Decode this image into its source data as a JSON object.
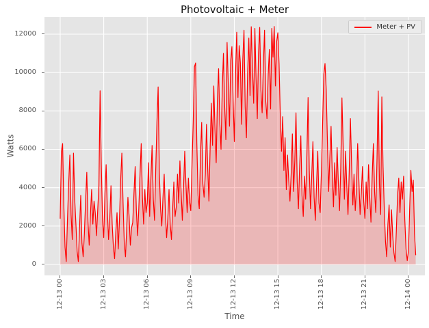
{
  "chart_data": {
    "type": "line",
    "title": "Photovoltaic + Meter",
    "xlabel": "Time",
    "ylabel": "Watts",
    "grid": true,
    "background_color": "#e5e5e5",
    "grid_color": "#ffffff",
    "x_tick_labels": [
      "12-13 00",
      "12-13 03",
      "12-13 06",
      "12-13 09",
      "12-13 12",
      "12-13 15",
      "12-13 18",
      "12-13 21",
      "12-14 00"
    ],
    "x_tick_minutes": [
      0,
      180,
      360,
      540,
      720,
      900,
      1080,
      1260,
      1440
    ],
    "y_ticks": [
      0,
      2000,
      4000,
      6000,
      8000,
      10000,
      12000
    ],
    "y_tick_labels": [
      "0",
      "2000",
      "4000",
      "6000",
      "8000",
      "10000",
      "12000"
    ],
    "x_domain_minutes": [
      -65,
      1508
    ],
    "y_domain_watts": [
      -570,
      12890
    ],
    "legend": {
      "position": "upper right",
      "entries": [
        {
          "label": "Meter + PV",
          "color": "#ff0000"
        }
      ]
    },
    "series": [
      {
        "name": "Meter + PV",
        "color": "#ff0000",
        "fill_to_zero": true,
        "fill_alpha": 0.2,
        "start_minute": 0,
        "sample_interval_minutes": 5,
        "values": [
          2400,
          5900,
          6300,
          3100,
          900,
          150,
          2300,
          4200,
          5700,
          2600,
          1300,
          5800,
          3400,
          2100,
          700,
          150,
          1900,
          3600,
          1100,
          400,
          1600,
          3300,
          4800,
          2200,
          1000,
          2600,
          3900,
          2100,
          3300,
          2700,
          1500,
          2800,
          4100,
          9050,
          5200,
          2300,
          1400,
          3700,
          5200,
          2800,
          1300,
          2400,
          4100,
          2100,
          900,
          300,
          1700,
          2700,
          800,
          2300,
          4400,
          5800,
          3200,
          1100,
          400,
          1900,
          3500,
          2500,
          1000,
          1900,
          2200,
          3700,
          5100,
          2800,
          1500,
          2900,
          4700,
          6300,
          3500,
          2100,
          3900,
          2700,
          3200,
          5300,
          2500,
          4500,
          6200,
          3400,
          2300,
          4900,
          7400,
          9250,
          4800,
          2900,
          2000,
          3500,
          4700,
          2700,
          1400,
          2400,
          3900,
          2100,
          1300,
          2900,
          4300,
          2500,
          3000,
          4700,
          3200,
          5400,
          3800,
          2300,
          4000,
          5900,
          4200,
          2700,
          4500,
          3300,
          2800,
          5200,
          7400,
          10300,
          10500,
          6300,
          3600,
          2900,
          5700,
          7400,
          4200,
          3500,
          4700,
          7300,
          5000,
          3300,
          6100,
          8400,
          6200,
          9300,
          7100,
          5300,
          8600,
          10200,
          7400,
          6000,
          9100,
          11000,
          8300,
          6500,
          11570,
          9400,
          7200,
          10600,
          11350,
          8600,
          6400,
          9900,
          12100,
          8700,
          11400,
          10500,
          7300,
          10700,
          12200,
          8200,
          6600,
          10000,
          11800,
          8800,
          12390,
          10200,
          8400,
          12300,
          9700,
          7600,
          11000,
          12350,
          9100,
          7900,
          10400,
          12200,
          8500,
          7600,
          9900,
          11200,
          8100,
          12300,
          10800,
          12400,
          9300,
          11600,
          12070,
          10460,
          7800,
          5900,
          7700,
          4900,
          6600,
          3900,
          5700,
          4400,
          3300,
          4700,
          6800,
          3800,
          5400,
          7900,
          4300,
          2900,
          5100,
          6700,
          3600,
          2500,
          4600,
          3400,
          5700,
          8700,
          4900,
          2900,
          4600,
          6400,
          3500,
          2300,
          4200,
          5900,
          3200,
          2700,
          4800,
          7300,
          9900,
          10470,
          9100,
          6400,
          3800,
          5600,
          7200,
          4700,
          3000,
          5300,
          3600,
          6100,
          4300,
          2800,
          5000,
          8680,
          6200,
          3400,
          5900,
          4100,
          2600,
          4800,
          7600,
          5200,
          3100,
          4700,
          2800,
          3900,
          6300,
          4400,
          2600,
          3700,
          5100,
          3300,
          2400,
          4300,
          2900,
          5200,
          3500,
          2200,
          4600,
          6300,
          3800,
          2700,
          5500,
          9040,
          4200,
          2600,
          8730,
          5100,
          2900,
          1200,
          400,
          2100,
          3100,
          900,
          2850,
          1500,
          600,
          150,
          1800,
          3600,
          4500,
          2700,
          4300,
          3400,
          4600,
          2300,
          800,
          200,
          700,
          2900,
          4900,
          3800,
          4400,
          1600,
          500
        ]
      }
    ]
  }
}
